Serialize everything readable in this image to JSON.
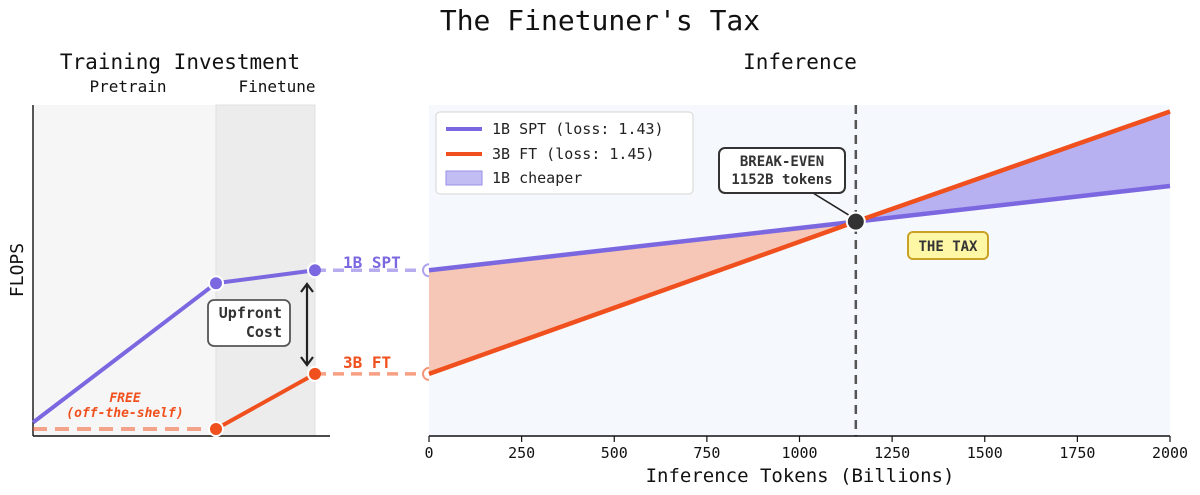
{
  "title": "The Finetuner's Tax",
  "left_panel": {
    "title": "Training Investment",
    "phase_labels": [
      "Pretrain",
      "Finetune"
    ],
    "ylabel": "FLOPS",
    "free_label": [
      "FREE",
      "(off-the-shelf)"
    ],
    "upfront_label": [
      "Upfront",
      "Cost"
    ]
  },
  "right_panel": {
    "title": "Inference",
    "xlabel": "Inference Tokens (Billions)",
    "break_even_label": [
      "BREAK-EVEN",
      "1152B tokens"
    ],
    "tax_label": "THE TAX",
    "connector_labels": {
      "spt": "1B SPT",
      "ft": "3B FT"
    }
  },
  "colors": {
    "spt": "#7b68e0",
    "ft": "#f0501e",
    "spt_fill": "#b3acf0",
    "ft_fill": "#f5c3b3",
    "panel_bg": "#f5f8fc",
    "pretrain_bg": "#f6f6f6",
    "finetune_bg": "#ececec",
    "tax_box": "#fdf7a6",
    "tax_border": "#c9a227"
  },
  "chart_data": [
    {
      "type": "line",
      "title": "Training Investment",
      "ylabel": "FLOPS",
      "phases": [
        "Pretrain",
        "Finetune"
      ],
      "series": [
        {
          "name": "1B SPT",
          "points": [
            [
              "start",
              0.02
            ],
            [
              "end of Pretrain",
              0.45
            ],
            [
              "end of Finetune",
              0.49
            ]
          ]
        },
        {
          "name": "3B FT",
          "points": [
            [
              "start",
              0.0
            ],
            [
              "end of Pretrain",
              0.0
            ],
            [
              "end of Finetune",
              0.17
            ]
          ]
        }
      ]
    },
    {
      "type": "line",
      "title": "Inference",
      "xlabel": "Inference Tokens (Billions)",
      "x_ticks": [
        0,
        250,
        500,
        750,
        1000,
        1250,
        1500,
        1750,
        2000
      ],
      "xlim": [
        0,
        2000
      ],
      "grid": false,
      "legend": {
        "placement": "top-left",
        "entries": [
          "1B SPT (loss: 1.43)",
          "3B FT (loss: 1.45)",
          "1B cheaper"
        ]
      },
      "series": [
        {
          "name": "1B SPT (loss: 1.43)",
          "x": [
            0,
            1152,
            2000
          ],
          "y": [
            0.49,
            0.64,
            0.75
          ]
        },
        {
          "name": "3B FT (loss: 1.45)",
          "x": [
            0,
            1152,
            2000
          ],
          "y": [
            0.17,
            0.64,
            0.98
          ]
        }
      ],
      "break_even": {
        "x": 1152,
        "label": "BREAK-EVEN\n1152B tokens"
      },
      "annotations": [
        "THE TAX"
      ]
    }
  ]
}
